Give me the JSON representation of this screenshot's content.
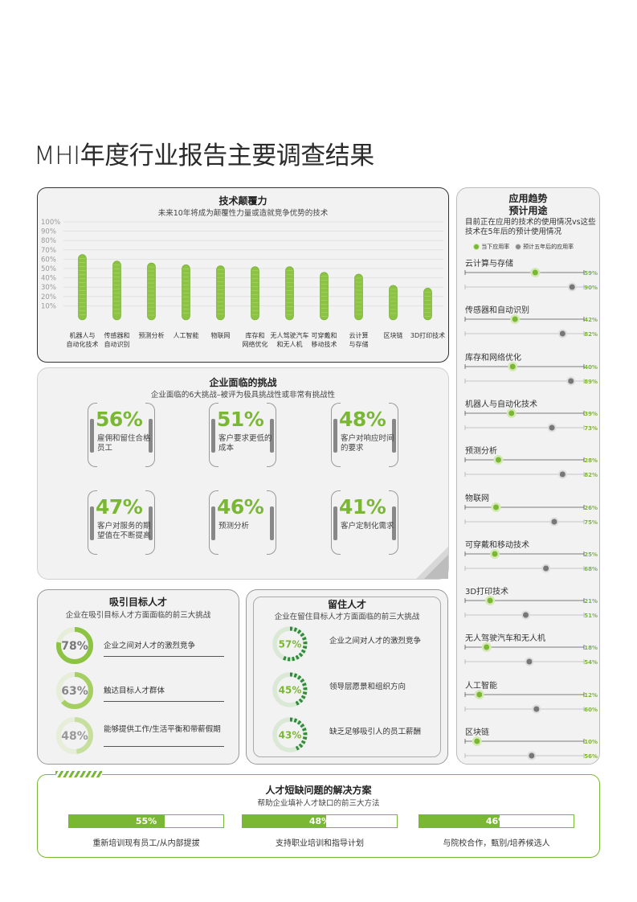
{
  "page_title": "MHI年度行业报告主要调查结果",
  "tech": {
    "title": "技术颠覆力",
    "subtitle": "未来10年将成为颠覆性力量或造就竞争优势的技术"
  },
  "chart_data": [
    {
      "type": "bar",
      "title": "技术颠覆力",
      "subtitle": "未来10年将成为颠覆性力量或造就竞争优势的技术",
      "categories": [
        "机器人与\n自动化技术",
        "传感器和\n自动识别",
        "预测分析",
        "人工智能",
        "物联网",
        "库存和\n网络优化",
        "无人驾驶汽车\n和无人机",
        "可穿戴和\n移动技术",
        "云计算\n与存储",
        "区块链",
        "3D打印技术"
      ],
      "values": [
        65,
        58,
        56,
        54,
        53,
        52,
        52,
        46,
        44,
        32,
        29
      ],
      "yticks": [
        "100%",
        "90%",
        "80%",
        "70%",
        "60%",
        "50%",
        "40%",
        "30%",
        "20%",
        "10%"
      ],
      "ylim": [
        0,
        100
      ]
    },
    {
      "type": "dumbbell",
      "title": "应用趋势 预计用途",
      "categories": [
        "云计算与存储",
        "传感器和自动识别",
        "库存和网络优化",
        "机器人与自动化技术",
        "预测分析",
        "物联网",
        "可穿戴和移动技术",
        "3D打印技术",
        "无人驾驶汽车和无人机",
        "人工智能",
        "区块链"
      ],
      "series": [
        {
          "name": "当下应用率",
          "values": [
            59,
            42,
            40,
            39,
            28,
            26,
            25,
            21,
            18,
            12,
            10
          ]
        },
        {
          "name": "预计五年后的应用率",
          "values": [
            90,
            82,
            89,
            73,
            82,
            75,
            68,
            51,
            54,
            60,
            56
          ]
        }
      ]
    }
  ],
  "challenges": {
    "title": "企业面临的挑战",
    "subtitle": "企业面临的6大挑战–被评为极具挑战性或非常有挑战性",
    "items": [
      {
        "pct": "56%",
        "label": "雇佣和留住合格员工"
      },
      {
        "pct": "51%",
        "label": "客户要求更低的成本"
      },
      {
        "pct": "48%",
        "label": "客户对响应时间的要求"
      },
      {
        "pct": "47%",
        "label": "客户对服务的期望值在不断提高"
      },
      {
        "pct": "46%",
        "label": "预测分析"
      },
      {
        "pct": "41%",
        "label": "客户定制化需求"
      }
    ]
  },
  "attract": {
    "title": "吸引目标人才",
    "subtitle": "企业在吸引目标人才方面面临的前三大挑战",
    "items": [
      {
        "pct": "78%",
        "value": 78,
        "label": "企业之间对人才的激烈竞争"
      },
      {
        "pct": "63%",
        "value": 63,
        "label": "触达目标人才群体"
      },
      {
        "pct": "48%",
        "value": 48,
        "label": "能够提供工作/生活平衡和带薪假期"
      }
    ]
  },
  "retain": {
    "title": "留住人才",
    "subtitle": "企业在留住目标人才方面面临的前三大挑战",
    "items": [
      {
        "pct": "57%",
        "value": 57,
        "label": "企业之间对人才的激烈竞争"
      },
      {
        "pct": "45%",
        "value": 45,
        "label": "领导层愿景和组织方向"
      },
      {
        "pct": "43%",
        "value": 43,
        "label": "缺乏足够吸引人的员工薪酬"
      }
    ]
  },
  "trend": {
    "title1": "应用趋势",
    "title2": "预计用途",
    "desc": "目前正在应用的技术的使用情况vs这些技术在5年后的预计使用情况",
    "legend_now": "当下应用率",
    "legend_future": "预计五年后的应用率",
    "items": [
      {
        "name": "云计算与存储",
        "now": 59,
        "future": 90,
        "now_label": "59%",
        "future_label": "90%"
      },
      {
        "name": "传感器和自动识别",
        "now": 42,
        "future": 82,
        "now_label": "42%",
        "future_label": "82%"
      },
      {
        "name": "库存和网络优化",
        "now": 40,
        "future": 89,
        "now_label": "40%",
        "future_label": "89%"
      },
      {
        "name": "机器人与自动化技术",
        "now": 39,
        "future": 73,
        "now_label": "39%",
        "future_label": "73%"
      },
      {
        "name": "预测分析",
        "now": 28,
        "future": 82,
        "now_label": "28%",
        "future_label": "82%"
      },
      {
        "name": "物联网",
        "now": 26,
        "future": 75,
        "now_label": "26%",
        "future_label": "75%"
      },
      {
        "name": "可穿戴和移动技术",
        "now": 25,
        "future": 68,
        "now_label": "25%",
        "future_label": "68%"
      },
      {
        "name": "3D打印技术",
        "now": 21,
        "future": 51,
        "now_label": "21%",
        "future_label": "51%"
      },
      {
        "name": "无人驾驶汽车和无人机",
        "now": 18,
        "future": 54,
        "now_label": "18%",
        "future_label": "54%"
      },
      {
        "name": "人工智能",
        "now": 12,
        "future": 60,
        "now_label": "12%",
        "future_label": "60%"
      },
      {
        "name": "区块链",
        "now": 10,
        "future": 56,
        "now_label": "10%",
        "future_label": "56%"
      }
    ]
  },
  "solutions": {
    "title": "人才短缺问题的解决方案",
    "subtitle": "帮助企业填补人才缺口的前三大方法",
    "items": [
      {
        "pct": "55%",
        "value": 55,
        "label": "重新培训现有员工/从内部提拔"
      },
      {
        "pct": "48%",
        "value": 48,
        "label": "支持职业培训和指导计划"
      },
      {
        "pct": "46%",
        "value": 46,
        "label": "与院校合作，甄别/培养候选人"
      }
    ]
  },
  "colors": {
    "accent": "#7ab834",
    "accent_light": "#a8d56a",
    "dark_green": "#2e8b3a",
    "grey_marker": "#8a8a8a"
  }
}
